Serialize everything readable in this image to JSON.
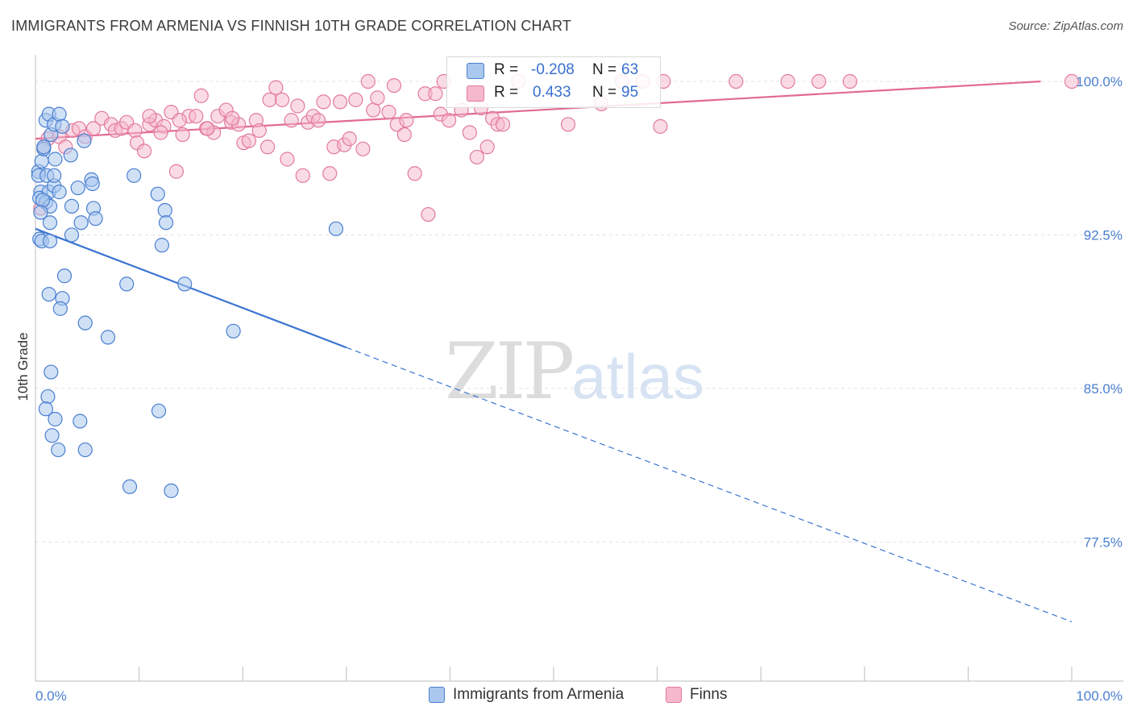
{
  "header": {
    "title": "IMMIGRANTS FROM ARMENIA VS FINNISH 10TH GRADE CORRELATION CHART",
    "source": "Source: ZipAtlas.com"
  },
  "watermark": {
    "zip": "ZIP",
    "atlas": "atlas"
  },
  "legend_box": {
    "rows": [
      {
        "r_label": "R =",
        "r_value": "-0.208",
        "n_label": "N =",
        "n_value": "63"
      },
      {
        "r_label": "R =",
        "r_value": "0.433",
        "n_label": "N =",
        "n_value": "95"
      }
    ]
  },
  "bottom_legend": {
    "items": [
      {
        "label": "Immigrants from Armenia"
      },
      {
        "label": "Finns"
      }
    ]
  },
  "colors": {
    "blue_fill": "#aac8ee",
    "blue_stroke": "#4a7fd0",
    "blue_line": "#3a74d0",
    "pink_fill": "#f6b8cc",
    "pink_stroke": "#e27a9e",
    "pink_line": "#e26a92",
    "tick_label": "#4a7fd0",
    "grid": "#e3e3e3"
  },
  "chart_data": {
    "type": "scatter",
    "title": "IMMIGRANTS FROM ARMENIA VS FINNISH 10TH GRADE CORRELATION CHART",
    "ylabel": "10th Grade",
    "xlabel": "",
    "xlim": [
      0,
      100
    ],
    "ylim": [
      70.7,
      101.3
    ],
    "x_ticks": [
      0,
      100
    ],
    "x_tick_labels": [
      "0.0%",
      "100.0%"
    ],
    "y_ticks": [
      77.5,
      85.0,
      92.5,
      100.0
    ],
    "y_tick_labels": [
      "77.5%",
      "85.0%",
      "92.5%",
      "100.0%"
    ],
    "grid": true,
    "legend_position": "top-center",
    "series": [
      {
        "name": "Immigrants from Armenia",
        "r": -0.208,
        "n": 63,
        "trend": {
          "x": [
            0,
            30,
            100
          ],
          "y": [
            92.8,
            87.0,
            73.6
          ],
          "solid_until_x": 30
        },
        "points": [
          [
            0.3,
            95.6
          ],
          [
            0.3,
            95.4
          ],
          [
            0.5,
            94.6
          ],
          [
            0.4,
            94.3
          ],
          [
            0.6,
            96.1
          ],
          [
            0.8,
            96.7
          ],
          [
            0.4,
            92.3
          ],
          [
            0.6,
            92.2
          ],
          [
            1.0,
            98.1
          ],
          [
            1.3,
            98.4
          ],
          [
            1.5,
            97.4
          ],
          [
            1.8,
            97.9
          ],
          [
            2.3,
            98.4
          ],
          [
            1.1,
            95.4
          ],
          [
            1.3,
            94.6
          ],
          [
            1.0,
            94.1
          ],
          [
            1.4,
            93.9
          ],
          [
            1.8,
            94.9
          ],
          [
            2.3,
            94.6
          ],
          [
            1.8,
            95.4
          ],
          [
            1.9,
            96.2
          ],
          [
            2.6,
            97.8
          ],
          [
            3.4,
            96.4
          ],
          [
            4.7,
            97.1
          ],
          [
            3.5,
            93.9
          ],
          [
            4.1,
            94.8
          ],
          [
            5.4,
            95.2
          ],
          [
            5.5,
            95.0
          ],
          [
            5.6,
            93.8
          ],
          [
            5.8,
            93.3
          ],
          [
            4.4,
            93.1
          ],
          [
            3.5,
            92.5
          ],
          [
            1.4,
            93.1
          ],
          [
            1.4,
            92.2
          ],
          [
            2.8,
            90.5
          ],
          [
            1.3,
            89.6
          ],
          [
            2.6,
            89.4
          ],
          [
            2.4,
            88.9
          ],
          [
            4.8,
            88.2
          ],
          [
            7.0,
            87.5
          ],
          [
            8.8,
            90.1
          ],
          [
            9.5,
            95.4
          ],
          [
            11.8,
            94.5
          ],
          [
            12.5,
            93.7
          ],
          [
            12.6,
            93.1
          ],
          [
            12.2,
            92.0
          ],
          [
            14.4,
            90.1
          ],
          [
            19.1,
            87.8
          ],
          [
            29.0,
            92.8
          ],
          [
            1.5,
            85.8
          ],
          [
            1.2,
            84.6
          ],
          [
            1.0,
            84.0
          ],
          [
            1.9,
            83.5
          ],
          [
            4.3,
            83.4
          ],
          [
            1.6,
            82.7
          ],
          [
            2.2,
            82.0
          ],
          [
            4.8,
            82.0
          ],
          [
            9.1,
            80.2
          ],
          [
            11.9,
            83.9
          ],
          [
            13.1,
            80.0
          ],
          [
            0.7,
            94.2
          ],
          [
            0.5,
            93.6
          ],
          [
            0.8,
            96.8
          ]
        ]
      },
      {
        "name": "Finns",
        "r": 0.433,
        "n": 95,
        "trend": {
          "x": [
            0,
            97
          ],
          "y": [
            97.2,
            100.0
          ]
        },
        "points": [
          [
            0.8,
            96.8
          ],
          [
            0.5,
            93.8
          ],
          [
            1.2,
            97.2
          ],
          [
            2.3,
            97.3
          ],
          [
            2.9,
            96.8
          ],
          [
            3.6,
            97.6
          ],
          [
            4.2,
            97.7
          ],
          [
            4.8,
            97.3
          ],
          [
            5.6,
            97.7
          ],
          [
            6.4,
            98.2
          ],
          [
            7.3,
            97.9
          ],
          [
            7.7,
            97.6
          ],
          [
            8.3,
            97.7
          ],
          [
            8.8,
            98.0
          ],
          [
            9.6,
            97.6
          ],
          [
            9.8,
            97.0
          ],
          [
            10.5,
            96.6
          ],
          [
            11.0,
            97.9
          ],
          [
            11.6,
            98.1
          ],
          [
            12.4,
            97.8
          ],
          [
            12.1,
            97.5
          ],
          [
            13.1,
            98.5
          ],
          [
            13.6,
            95.6
          ],
          [
            14.2,
            97.4
          ],
          [
            14.8,
            98.3
          ],
          [
            15.5,
            98.3
          ],
          [
            16.0,
            99.3
          ],
          [
            16.5,
            97.7
          ],
          [
            17.2,
            97.5
          ],
          [
            17.6,
            98.3
          ],
          [
            18.4,
            98.6
          ],
          [
            18.9,
            98.0
          ],
          [
            19.6,
            97.9
          ],
          [
            20.1,
            97.0
          ],
          [
            20.6,
            97.1
          ],
          [
            21.3,
            98.1
          ],
          [
            21.6,
            97.6
          ],
          [
            22.4,
            96.8
          ],
          [
            22.6,
            99.1
          ],
          [
            23.2,
            99.7
          ],
          [
            23.8,
            99.1
          ],
          [
            24.3,
            96.2
          ],
          [
            24.7,
            98.1
          ],
          [
            25.3,
            98.8
          ],
          [
            25.8,
            95.4
          ],
          [
            26.3,
            98.0
          ],
          [
            26.8,
            98.3
          ],
          [
            27.3,
            98.1
          ],
          [
            27.8,
            99.0
          ],
          [
            28.4,
            95.5
          ],
          [
            28.8,
            96.8
          ],
          [
            29.4,
            99.0
          ],
          [
            29.8,
            96.9
          ],
          [
            30.3,
            97.2
          ],
          [
            30.9,
            99.1
          ],
          [
            31.6,
            96.7
          ],
          [
            32.1,
            100.0
          ],
          [
            32.6,
            98.6
          ],
          [
            33.0,
            99.2
          ],
          [
            34.1,
            98.5
          ],
          [
            34.6,
            99.8
          ],
          [
            34.9,
            97.9
          ],
          [
            35.6,
            97.4
          ],
          [
            35.8,
            98.1
          ],
          [
            36.6,
            95.5
          ],
          [
            37.6,
            99.4
          ],
          [
            37.9,
            93.5
          ],
          [
            38.6,
            99.4
          ],
          [
            39.1,
            98.4
          ],
          [
            39.4,
            100.0
          ],
          [
            39.9,
            98.1
          ],
          [
            41.1,
            98.6
          ],
          [
            41.9,
            97.5
          ],
          [
            42.6,
            96.3
          ],
          [
            43.0,
            98.7
          ],
          [
            43.6,
            96.8
          ],
          [
            44.1,
            98.2
          ],
          [
            44.6,
            97.9
          ],
          [
            45.1,
            97.9
          ],
          [
            46.6,
            100.0
          ],
          [
            51.4,
            97.9
          ],
          [
            54.6,
            98.9
          ],
          [
            56.6,
            100.0
          ],
          [
            58.6,
            100.0
          ],
          [
            60.6,
            100.0
          ],
          [
            60.3,
            97.8
          ],
          [
            67.6,
            100.0
          ],
          [
            72.6,
            100.0
          ],
          [
            75.6,
            100.0
          ],
          [
            78.6,
            100.0
          ],
          [
            100.0,
            100.0
          ],
          [
            11.0,
            98.3
          ],
          [
            13.9,
            98.1
          ],
          [
            16.6,
            97.7
          ],
          [
            19.0,
            98.2
          ]
        ]
      }
    ]
  }
}
